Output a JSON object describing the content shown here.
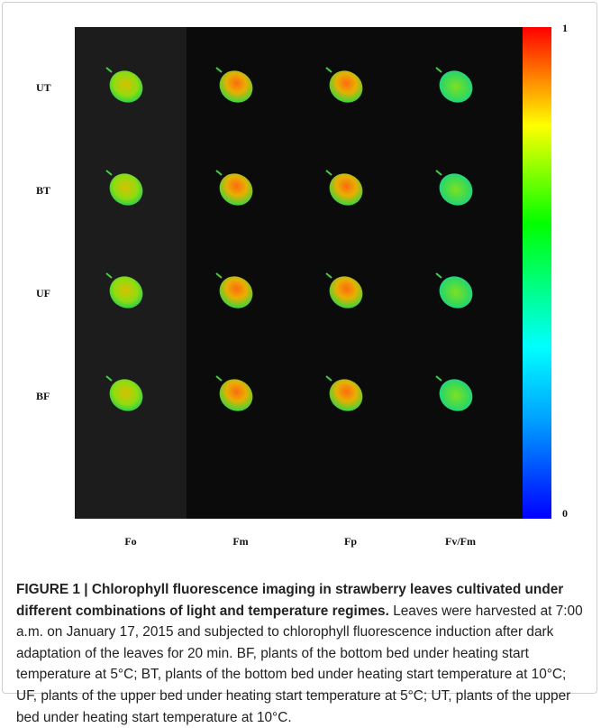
{
  "figure": {
    "rows": [
      "UT",
      "BT",
      "UF",
      "BF"
    ],
    "columns": [
      "Fo",
      "Fm",
      "Fp",
      "Fv/Fm"
    ],
    "colorbar": {
      "max": "1",
      "min": "0"
    }
  },
  "caption": {
    "label": "FIGURE 1 |",
    "title": "Chlorophyll fluorescence imaging in strawberry leaves cultivated under different combinations of light and temperature regimes.",
    "text": "Leaves were harvested at 7:00 a.m. on January 17, 2015 and subjected to chlorophyll fluorescence induction after dark adaptation of the leaves for 20 min. BF, plants of the bottom bed under heating start temperature at 5°C; BT, plants of the bottom bed under heating start temperature at 10°C; UF, plants of the upper bed under heating start temperature at 5°C; UT, plants of the upper bed under heating start temperature at 10°C."
  }
}
